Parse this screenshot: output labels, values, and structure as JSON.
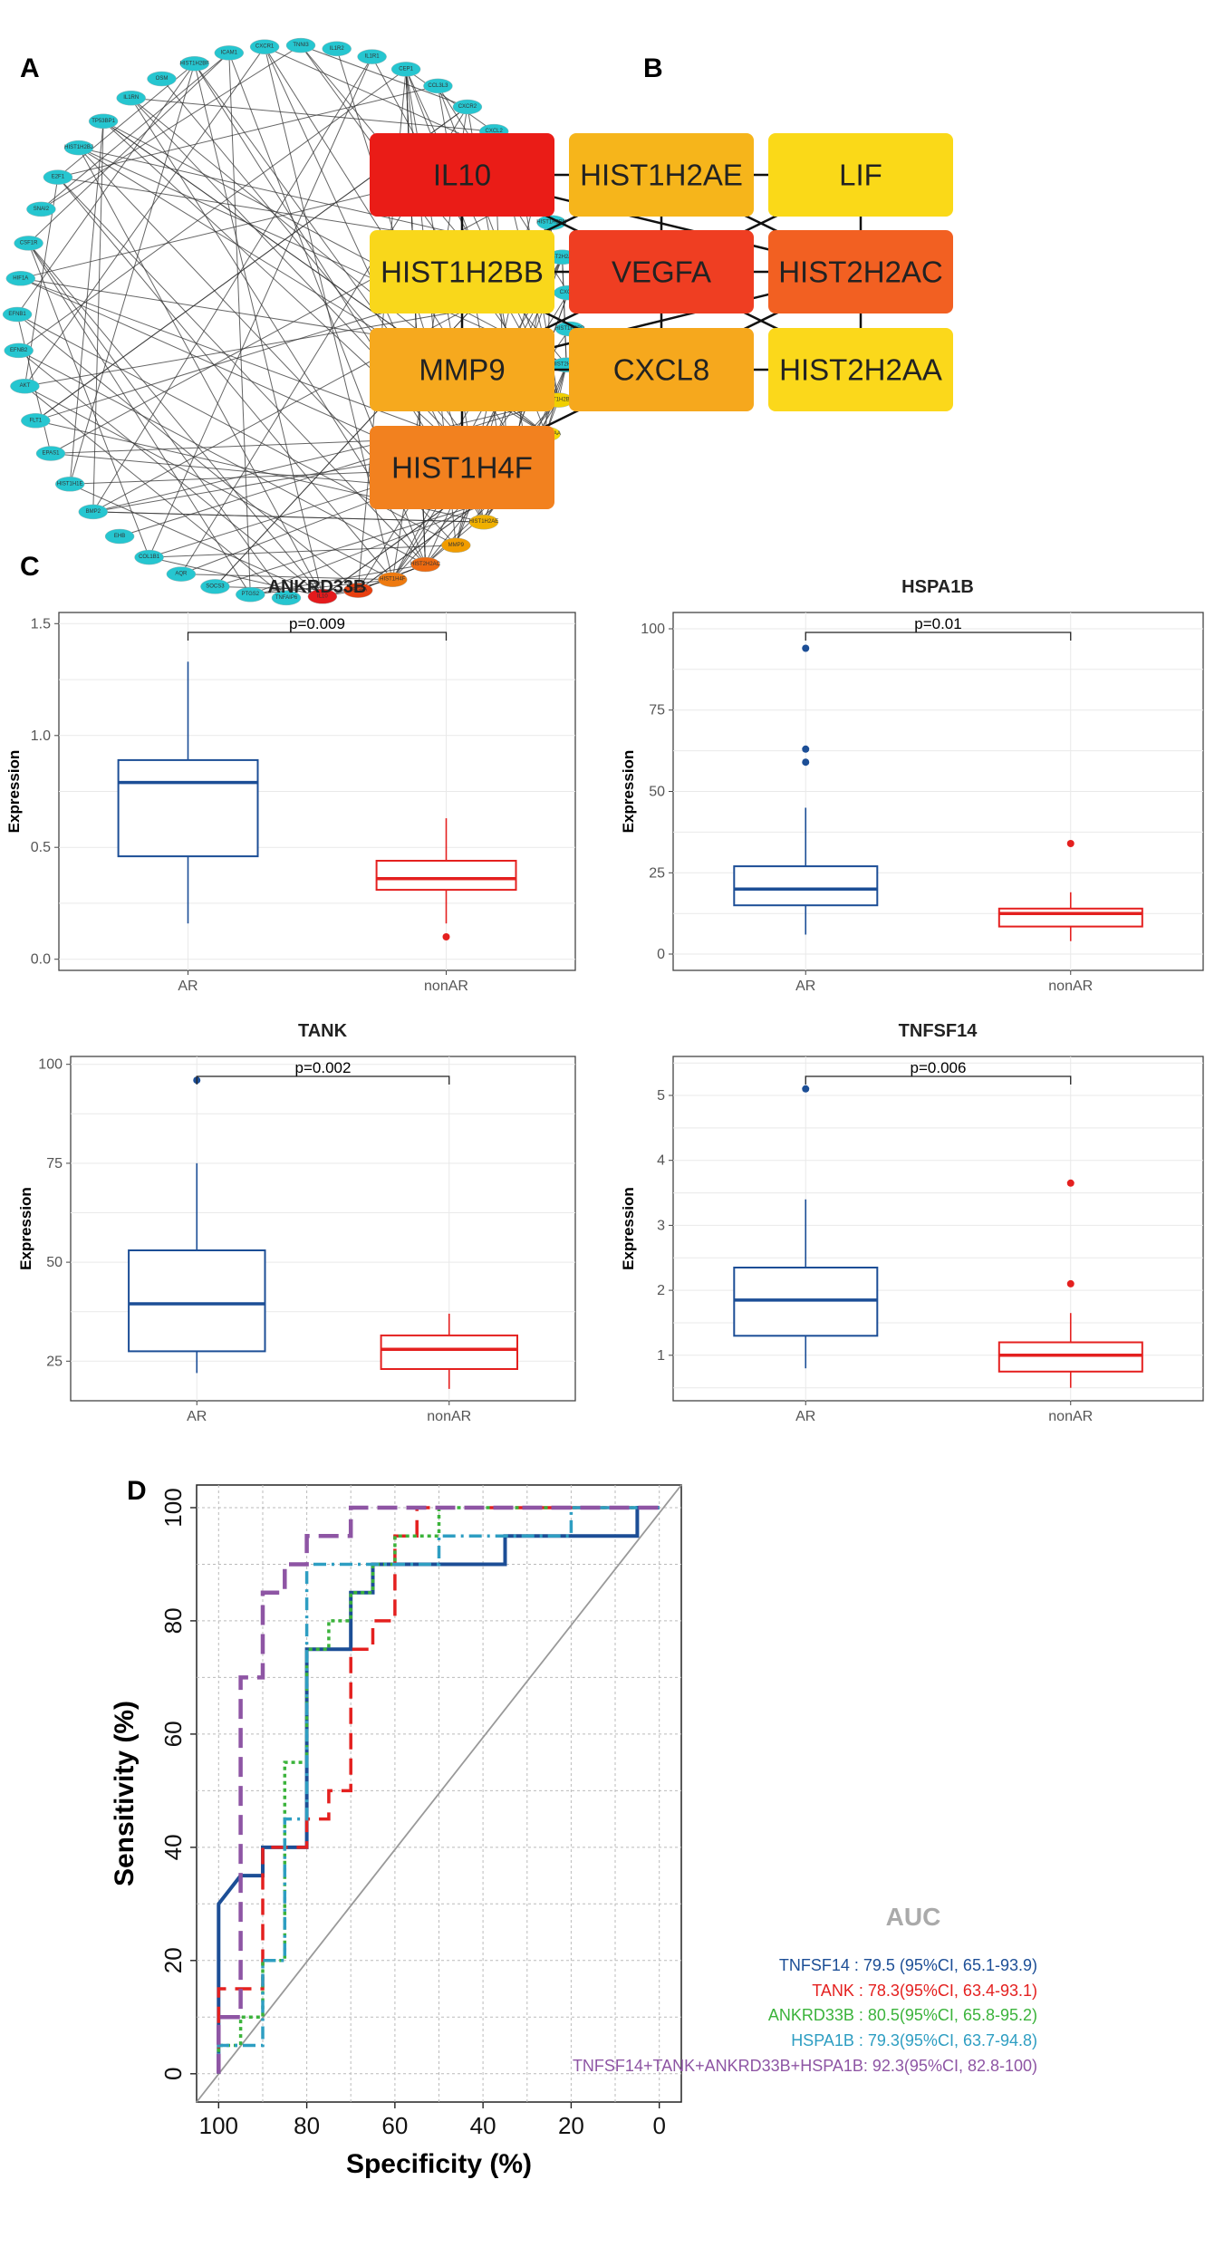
{
  "panel_labels": [
    "A",
    "B",
    "C",
    "D"
  ],
  "colors": {
    "node_cyan": "#26C6D0",
    "ar_blue": "#1C4E96",
    "nonar_red": "#E4201F",
    "grid": "#E9E9E9"
  },
  "chart_data": [
    {
      "type": "network",
      "panel": "A",
      "nodes": [
        "CXCR1",
        "TNNI3",
        "IL1R2",
        "IL1R1",
        "CEP1",
        "CCL3L3",
        "CXCR2",
        "CXCL2",
        "HIST1H2BK",
        "HIST1H2BD",
        "HIST1H2BN",
        "HIST2H2AA3",
        "CXCL2",
        "HIST1H2BD",
        "HIST2H2BE",
        "HIST1H2BB",
        "HIST2H2AA",
        "LIF",
        "CXCL8",
        "HIST1H2AE",
        "MMP9",
        "HIST2H2AC",
        "HIST1H4F",
        "VEGFA",
        "IL10",
        "TNFAIP6",
        "PTGS2",
        "SOCS3",
        "AQR",
        "COL1B1",
        "EHB",
        "BMP2",
        "HIST1H1E",
        "EPAS1",
        "FLT1",
        "AKT",
        "EFNB2",
        "EFNB1",
        "HIF1A",
        "CSF1R",
        "SNAI2",
        "E2F1",
        "HIST1H2BJ",
        "TP53BP1",
        "IL1RN",
        "OSM",
        "HIST1H2BF",
        "ICAM1"
      ],
      "hub_colors": {
        "LIF": "#F4D000",
        "CXCL8": "#F0A800",
        "HIST1H2AE": "#F0B000",
        "MMP9": "#F19C00",
        "HIST2H2AC": "#EE6A10",
        "HIST1H4F": "#EE7A10",
        "VEGFA": "#E84010",
        "IL10": "#E41A1C",
        "HIST1H2BB": "#F0D000",
        "HIST2H2AA": "#F4D800"
      }
    },
    {
      "type": "network",
      "panel": "B",
      "nodes": [
        {
          "label": "IL10",
          "color": "#EA1C17"
        },
        {
          "label": "HIST1H2AE",
          "color": "#F6B51B"
        },
        {
          "label": "LIF",
          "color": "#FAD918"
        },
        {
          "label": "HIST1H2BB",
          "color": "#F9D71B"
        },
        {
          "label": "VEGFA",
          "color": "#EF3E22"
        },
        {
          "label": "HIST2H2AC",
          "color": "#F26022"
        },
        {
          "label": "MMP9",
          "color": "#F6A91E"
        },
        {
          "label": "CXCL8",
          "color": "#F6A81D"
        },
        {
          "label": "HIST2H2AA",
          "color": "#FBD81B"
        },
        {
          "label": "HIST1H4F",
          "color": "#F2811F"
        }
      ]
    },
    {
      "type": "box",
      "title": "ANKRD33B",
      "categories": [
        "AR",
        "nonAR"
      ],
      "ylabel": "Expression",
      "ylim": [
        -0.05,
        1.55
      ],
      "yticks": [
        "0.0",
        "0.5",
        "1.0",
        "1.5"
      ],
      "series": [
        {
          "name": "AR",
          "min": 0.16,
          "q1": 0.46,
          "median": 0.79,
          "q3": 0.89,
          "max": 1.33,
          "outliers": []
        },
        {
          "name": "nonAR",
          "min": 0.16,
          "q1": 0.31,
          "median": 0.36,
          "q3": 0.44,
          "max": 0.63,
          "outliers": [
            0.1
          ]
        }
      ],
      "pvalue": "p=0.009"
    },
    {
      "type": "box",
      "title": "HSPA1B",
      "categories": [
        "AR",
        "nonAR"
      ],
      "ylabel": "Expression",
      "ylim": [
        -5,
        105
      ],
      "yticks": [
        "0",
        "25",
        "50",
        "75",
        "100"
      ],
      "series": [
        {
          "name": "AR",
          "min": 6,
          "q1": 15,
          "median": 20,
          "q3": 27,
          "max": 45,
          "outliers": [
            59,
            63,
            94
          ]
        },
        {
          "name": "nonAR",
          "min": 4,
          "q1": 8.5,
          "median": 12.5,
          "q3": 14,
          "max": 19,
          "outliers": [
            34
          ]
        }
      ],
      "pvalue": "p=0.01"
    },
    {
      "type": "box",
      "title": "TANK",
      "categories": [
        "AR",
        "nonAR"
      ],
      "ylabel": "Expression",
      "ylim": [
        15,
        102
      ],
      "yticks": [
        "25",
        "50",
        "75",
        "100"
      ],
      "series": [
        {
          "name": "AR",
          "min": 22,
          "q1": 27.5,
          "median": 39.5,
          "q3": 53,
          "max": 75,
          "outliers": [
            96
          ]
        },
        {
          "name": "nonAR",
          "min": 18,
          "q1": 23,
          "median": 28,
          "q3": 31.5,
          "max": 37,
          "outliers": []
        }
      ],
      "pvalue": "p=0.002"
    },
    {
      "type": "box",
      "title": "TNFSF14",
      "categories": [
        "AR",
        "nonAR"
      ],
      "ylabel": "Expression",
      "ylim": [
        0.3,
        5.6
      ],
      "yticks": [
        "1",
        "2",
        "3",
        "4",
        "5"
      ],
      "series": [
        {
          "name": "AR",
          "min": 0.8,
          "q1": 1.3,
          "median": 1.85,
          "q3": 2.35,
          "max": 3.4,
          "outliers": [
            5.1
          ]
        },
        {
          "name": "nonAR",
          "min": 0.5,
          "q1": 0.75,
          "median": 1.0,
          "q3": 1.2,
          "max": 1.65,
          "outliers": [
            2.1,
            3.65
          ]
        }
      ],
      "pvalue": "p=0.006"
    },
    {
      "type": "line",
      "subtype": "roc",
      "xlabel": "Specificity (%)",
      "ylabel": "Sensitivity (%)",
      "xlim": [
        105,
        -5
      ],
      "ylim": [
        -5,
        104
      ],
      "xticks": [
        "100",
        "80",
        "60",
        "40",
        "20",
        "0"
      ],
      "yticks": [
        "0",
        "20",
        "40",
        "60",
        "80",
        "100"
      ],
      "auc_title": "AUC",
      "series": [
        {
          "name": "TNFSF14",
          "legend": "TNFSF14 : 79.5 (95%CI, 65.1-93.9)",
          "color": "#1C4E96",
          "points": [
            [
              100,
              0
            ],
            [
              100,
              30
            ],
            [
              95,
              35
            ],
            [
              90,
              35
            ],
            [
              90,
              40
            ],
            [
              80,
              40
            ],
            [
              80,
              75
            ],
            [
              70,
              75
            ],
            [
              70,
              85
            ],
            [
              65,
              85
            ],
            [
              65,
              90
            ],
            [
              35,
              90
            ],
            [
              35,
              95
            ],
            [
              5,
              95
            ],
            [
              5,
              100
            ],
            [
              0,
              100
            ]
          ]
        },
        {
          "name": "TANK",
          "legend": "TANK : 78.3(95%CI, 63.4-93.1)",
          "color": "#E4201F",
          "points": [
            [
              100,
              0
            ],
            [
              100,
              15
            ],
            [
              90,
              15
            ],
            [
              90,
              40
            ],
            [
              80,
              40
            ],
            [
              80,
              45
            ],
            [
              75,
              45
            ],
            [
              75,
              50
            ],
            [
              70,
              50
            ],
            [
              70,
              75
            ],
            [
              65,
              75
            ],
            [
              65,
              80
            ],
            [
              60,
              80
            ],
            [
              60,
              95
            ],
            [
              55,
              95
            ],
            [
              55,
              100
            ],
            [
              0,
              100
            ]
          ]
        },
        {
          "name": "ANKRD33B",
          "legend": "ANKRD33B : 80.5(95%CI, 65.8-95.2)",
          "color": "#3BB33B",
          "points": [
            [
              100,
              0
            ],
            [
              100,
              5
            ],
            [
              95,
              5
            ],
            [
              95,
              10
            ],
            [
              90,
              10
            ],
            [
              90,
              20
            ],
            [
              85,
              20
            ],
            [
              85,
              55
            ],
            [
              80,
              55
            ],
            [
              80,
              75
            ],
            [
              75,
              75
            ],
            [
              75,
              80
            ],
            [
              70,
              80
            ],
            [
              70,
              85
            ],
            [
              65,
              85
            ],
            [
              65,
              90
            ],
            [
              60,
              90
            ],
            [
              60,
              95
            ],
            [
              50,
              95
            ],
            [
              50,
              100
            ],
            [
              0,
              100
            ]
          ]
        },
        {
          "name": "HSPA1B",
          "legend": "HSPA1B : 79.3(95%CI, 63.7-94.8)",
          "color": "#2E9EC2",
          "points": [
            [
              100,
              0
            ],
            [
              100,
              5
            ],
            [
              90,
              5
            ],
            [
              90,
              20
            ],
            [
              85,
              20
            ],
            [
              85,
              45
            ],
            [
              80,
              45
            ],
            [
              80,
              90
            ],
            [
              50,
              90
            ],
            [
              50,
              95
            ],
            [
              20,
              95
            ],
            [
              20,
              100
            ],
            [
              0,
              100
            ]
          ]
        },
        {
          "name": "TNFSF14+TANK+ANKRD33B+HSPA1B",
          "legend": "TNFSF14+TANK+ANKRD33B+HSPA1B: 92.3(95%CI, 82.8-100)",
          "color": "#8E55A4",
          "points": [
            [
              100,
              0
            ],
            [
              100,
              10
            ],
            [
              95,
              10
            ],
            [
              95,
              70
            ],
            [
              90,
              70
            ],
            [
              90,
              85
            ],
            [
              85,
              85
            ],
            [
              85,
              90
            ],
            [
              80,
              90
            ],
            [
              80,
              95
            ],
            [
              70,
              95
            ],
            [
              70,
              100
            ],
            [
              0,
              100
            ]
          ]
        }
      ]
    }
  ]
}
